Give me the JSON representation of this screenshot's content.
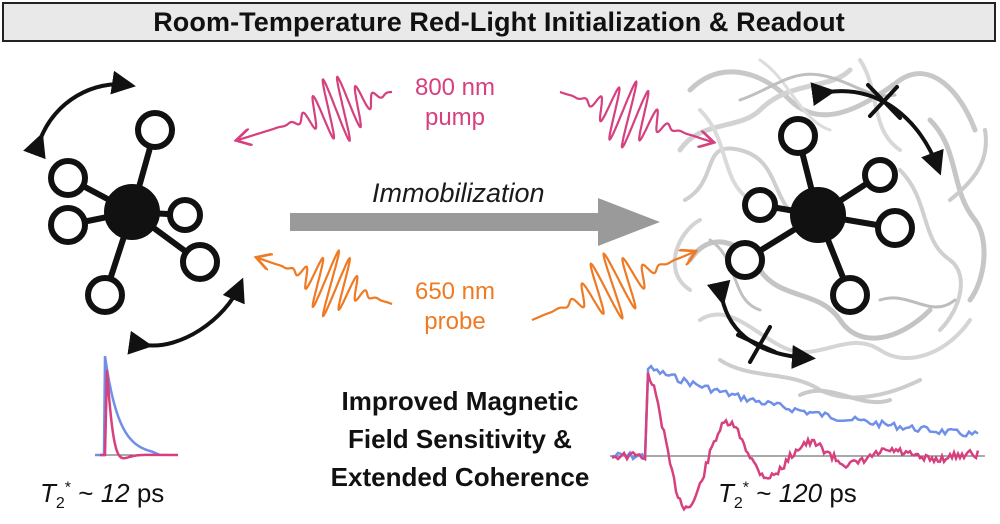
{
  "title": "Room-Temperature Red-Light Initialization & Readout",
  "pump": {
    "line1": "800 nm",
    "line2": "pump",
    "color": "#d6407f"
  },
  "probe": {
    "line1": "650 nm",
    "line2": "probe",
    "color": "#ef7a23"
  },
  "arrow_label": "Immobilization",
  "center_text": [
    "Improved Magnetic",
    "Field Sensitivity &",
    "Extended Coherence"
  ],
  "left_t2": {
    "symbol": "T",
    "sub": "2",
    "sup": "*",
    "approx": "~",
    "value": "12",
    "unit": "ps"
  },
  "right_t2": {
    "symbol": "T",
    "sub": "2",
    "sup": "*",
    "approx": "~",
    "value": "120",
    "unit": "ps"
  },
  "colors": {
    "pump": "#d6407f",
    "probe": "#ef7a23",
    "decay_blue": "#6f8fe8",
    "arrow_gray": "#9a9a9a"
  }
}
